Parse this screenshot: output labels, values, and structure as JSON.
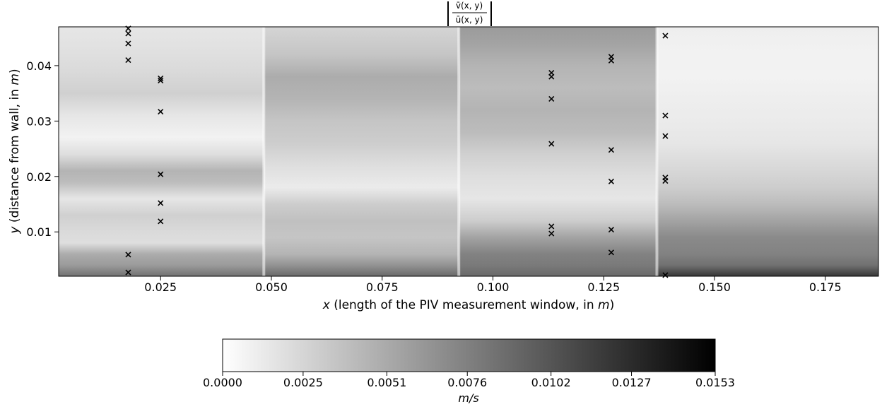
{
  "chart_data": {
    "type": "heatmap",
    "title": {
      "numerator": "v̄(x, y)",
      "denominator": "ū(x, y)"
    },
    "xlabel": {
      "var": "x",
      "text": " (length of the PIV measurement window, in ",
      "unit": "m",
      "close": ")"
    },
    "ylabel": {
      "var": "y",
      "text": " (distance from wall, in ",
      "unit": "m",
      "close": ")"
    },
    "xlim": [
      0.002,
      0.187
    ],
    "ylim": [
      0.002,
      0.047
    ],
    "xticks": [
      0.025,
      0.05,
      0.075,
      0.1,
      0.125,
      0.15,
      0.175
    ],
    "xtick_labels": [
      "0.025",
      "0.050",
      "0.075",
      "0.100",
      "0.125",
      "0.150",
      "0.175"
    ],
    "yticks": [
      0.01,
      0.02,
      0.03,
      0.04
    ],
    "ytick_labels": [
      "0.01",
      "0.02",
      "0.03",
      "0.04"
    ],
    "panel_boundaries_x": [
      0.0483,
      0.0923,
      0.137
    ],
    "colormap": "Greys",
    "colorbar": {
      "range": [
        0.0,
        0.0153
      ],
      "ticks": [
        0.0,
        0.0025,
        0.0051,
        0.0076,
        0.0102,
        0.0127,
        0.0153
      ],
      "tick_labels": [
        "0.0000",
        "0.0025",
        "0.0051",
        "0.0076",
        "0.0102",
        "0.0127",
        "0.0153"
      ],
      "label": "m/s",
      "orientation": "horizontal",
      "placement": "bottom"
    },
    "panels": [
      {
        "x_range": [
          0.002,
          0.0483
        ],
        "bands": [
          {
            "y": 0.002,
            "v": 0.0085
          },
          {
            "y": 0.004,
            "v": 0.006
          },
          {
            "y": 0.006,
            "v": 0.005
          },
          {
            "y": 0.008,
            "v": 0.002
          },
          {
            "y": 0.01,
            "v": 0.0022
          },
          {
            "y": 0.013,
            "v": 0.0028
          },
          {
            "y": 0.016,
            "v": 0.0015
          },
          {
            "y": 0.019,
            "v": 0.004
          },
          {
            "y": 0.021,
            "v": 0.0045
          },
          {
            "y": 0.024,
            "v": 0.002
          },
          {
            "y": 0.027,
            "v": 0.0008
          },
          {
            "y": 0.031,
            "v": 0.0015
          },
          {
            "y": 0.035,
            "v": 0.0028
          },
          {
            "y": 0.039,
            "v": 0.0022
          },
          {
            "y": 0.043,
            "v": 0.0018
          },
          {
            "y": 0.047,
            "v": 0.0015
          }
        ]
      },
      {
        "x_range": [
          0.0483,
          0.0923
        ],
        "bands": [
          {
            "y": 0.002,
            "v": 0.009
          },
          {
            "y": 0.004,
            "v": 0.0065
          },
          {
            "y": 0.006,
            "v": 0.0045
          },
          {
            "y": 0.009,
            "v": 0.0035
          },
          {
            "y": 0.012,
            "v": 0.0038
          },
          {
            "y": 0.015,
            "v": 0.003
          },
          {
            "y": 0.018,
            "v": 0.0012
          },
          {
            "y": 0.022,
            "v": 0.002
          },
          {
            "y": 0.026,
            "v": 0.003
          },
          {
            "y": 0.03,
            "v": 0.0035
          },
          {
            "y": 0.034,
            "v": 0.0045
          },
          {
            "y": 0.038,
            "v": 0.005
          },
          {
            "y": 0.042,
            "v": 0.0035
          },
          {
            "y": 0.047,
            "v": 0.0025
          }
        ]
      },
      {
        "x_range": [
          0.0923,
          0.137
        ],
        "bands": [
          {
            "y": 0.002,
            "v": 0.009
          },
          {
            "y": 0.004,
            "v": 0.008
          },
          {
            "y": 0.006,
            "v": 0.0075
          },
          {
            "y": 0.009,
            "v": 0.0055
          },
          {
            "y": 0.012,
            "v": 0.003
          },
          {
            "y": 0.016,
            "v": 0.0015
          },
          {
            "y": 0.02,
            "v": 0.002
          },
          {
            "y": 0.024,
            "v": 0.0028
          },
          {
            "y": 0.028,
            "v": 0.004
          },
          {
            "y": 0.032,
            "v": 0.0045
          },
          {
            "y": 0.036,
            "v": 0.004
          },
          {
            "y": 0.04,
            "v": 0.0045
          },
          {
            "y": 0.044,
            "v": 0.0055
          },
          {
            "y": 0.047,
            "v": 0.006
          }
        ]
      },
      {
        "x_range": [
          0.137,
          0.187
        ],
        "bands": [
          {
            "y": 0.002,
            "v": 0.012
          },
          {
            "y": 0.004,
            "v": 0.0085
          },
          {
            "y": 0.006,
            "v": 0.0075
          },
          {
            "y": 0.009,
            "v": 0.007
          },
          {
            "y": 0.012,
            "v": 0.0055
          },
          {
            "y": 0.015,
            "v": 0.004
          },
          {
            "y": 0.018,
            "v": 0.003
          },
          {
            "y": 0.022,
            "v": 0.0022
          },
          {
            "y": 0.026,
            "v": 0.0015
          },
          {
            "y": 0.03,
            "v": 0.0012
          },
          {
            "y": 0.034,
            "v": 0.001
          },
          {
            "y": 0.038,
            "v": 0.0008
          },
          {
            "y": 0.042,
            "v": 0.0008
          },
          {
            "y": 0.047,
            "v": 0.001
          }
        ]
      }
    ],
    "markers": {
      "shape": "x",
      "color": "#000000",
      "points": [
        {
          "x": 0.0177,
          "y": 0.0467
        },
        {
          "x": 0.0177,
          "y": 0.0458
        },
        {
          "x": 0.0177,
          "y": 0.044
        },
        {
          "x": 0.0177,
          "y": 0.041
        },
        {
          "x": 0.0177,
          "y": 0.0059
        },
        {
          "x": 0.0177,
          "y": 0.0027
        },
        {
          "x": 0.025,
          "y": 0.0377
        },
        {
          "x": 0.025,
          "y": 0.0373
        },
        {
          "x": 0.025,
          "y": 0.0317
        },
        {
          "x": 0.025,
          "y": 0.0204
        },
        {
          "x": 0.025,
          "y": 0.0152
        },
        {
          "x": 0.025,
          "y": 0.0119
        },
        {
          "x": 0.1132,
          "y": 0.0387
        },
        {
          "x": 0.1132,
          "y": 0.038
        },
        {
          "x": 0.1132,
          "y": 0.034
        },
        {
          "x": 0.1132,
          "y": 0.0259
        },
        {
          "x": 0.1132,
          "y": 0.011
        },
        {
          "x": 0.1132,
          "y": 0.0097
        },
        {
          "x": 0.1267,
          "y": 0.0416
        },
        {
          "x": 0.1267,
          "y": 0.0409
        },
        {
          "x": 0.1267,
          "y": 0.0248
        },
        {
          "x": 0.1267,
          "y": 0.0191
        },
        {
          "x": 0.1267,
          "y": 0.0104
        },
        {
          "x": 0.1267,
          "y": 0.0063
        },
        {
          "x": 0.1389,
          "y": 0.0454
        },
        {
          "x": 0.1389,
          "y": 0.031
        },
        {
          "x": 0.1389,
          "y": 0.0273
        },
        {
          "x": 0.1389,
          "y": 0.0198
        },
        {
          "x": 0.1389,
          "y": 0.0192
        },
        {
          "x": 0.1389,
          "y": 0.0022
        }
      ]
    }
  }
}
